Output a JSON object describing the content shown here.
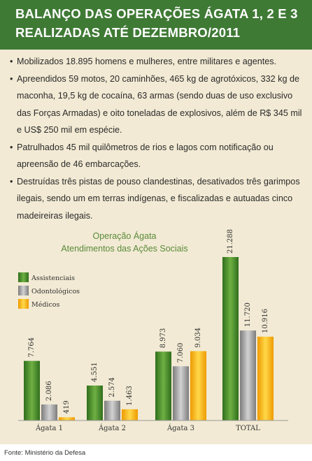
{
  "header": {
    "line1": "BALANÇO DAS OPERAÇÕES ÁGATA 1, 2 E 3",
    "line2": "REALIZADAS ATÉ DEZEMBRO/2011"
  },
  "bullets": [
    "Mobilizados 18.895 homens e mulheres, entre militares e agentes.",
    "Apreendidos 59 motos, 20 caminhões, 465 kg de agrotóxicos, 332 kg de maconha, 19,5 kg de cocaína, 63 armas (sendo duas de uso exclusivo das Forças Armadas) e oito toneladas de explosivos, além de R$ 345 mil e US$ 250 mil em espécie.",
    "Patrulhados 45 mil quilômetros de rios e lagos com notificação ou apreensão de 46 embarcações.",
    "Destruídas três pistas de pouso clandestinas, desativados três garimpos ilegais, sendo um em terras indígenas, e fiscalizadas e autuadas cinco madeireiras ilegais."
  ],
  "chart_data": {
    "type": "bar",
    "title": "Operação Ágata",
    "subtitle": "Atendimentos das Ações Sociais",
    "categories": [
      "Ágata 1",
      "Ágata 2",
      "Ágata 3",
      "TOTAL"
    ],
    "series": [
      {
        "name": "Assistenciais",
        "values": [
          7764,
          4551,
          8973,
          21288
        ],
        "labels": [
          "7.764",
          "4.551",
          "8.973",
          "21.288"
        ],
        "color": "#4d8f2c"
      },
      {
        "name": "Odontológicos",
        "values": [
          2086,
          2574,
          7060,
          11720
        ],
        "labels": [
          "2.086",
          "2.574",
          "7.060",
          "11.720"
        ],
        "color": "#a3a3a3"
      },
      {
        "name": "Médicos",
        "values": [
          419,
          1463,
          9034,
          10916
        ],
        "labels": [
          "419",
          "1.463",
          "9.034",
          "10.916"
        ],
        "color": "#f5b80e"
      }
    ],
    "legend_position": "top-left",
    "grid": false
  },
  "colors": {
    "header_bg": "#3f7a35",
    "panel_bg": "#f2ead4",
    "chart_title": "#5a8a3a"
  },
  "source": "Fonte: Ministério da Defesa"
}
